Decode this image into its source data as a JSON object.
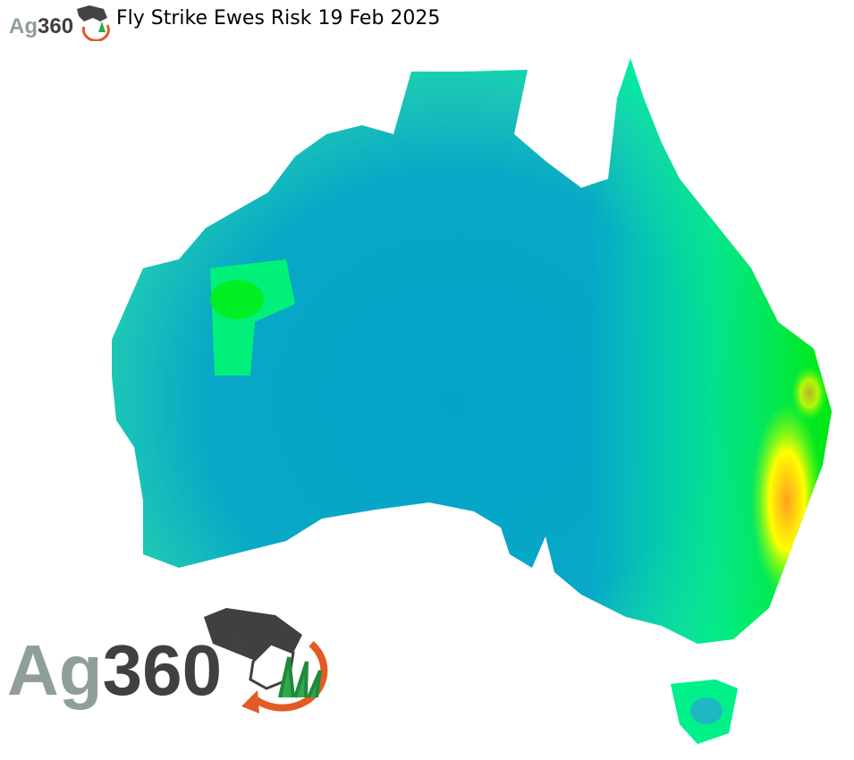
{
  "title": "Fly Strike Ewes Risk 19 Feb 2025",
  "logo": {
    "text_ag": "Ag",
    "text_num": "360",
    "registered": "®"
  },
  "map": {
    "region": "Australia",
    "color_scale": {
      "low": "#05a3c9",
      "mid": "#00f59a",
      "high": "#00ee00",
      "higher": "#ffff00",
      "highest": "#ff9a1a"
    }
  }
}
